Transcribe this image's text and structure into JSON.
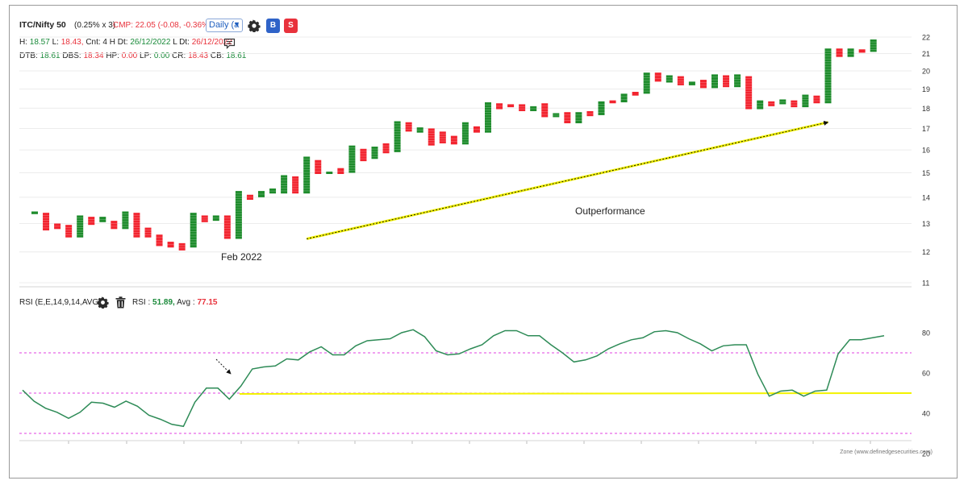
{
  "header": {
    "symbol": "ITC/Nifty 50",
    "box_info": "(0.25% x 3)",
    "cmp": "CMP: 22.05 (-0.08, -0.36%)",
    "timeframe": "Daily (a",
    "buy_label": "B",
    "sell_label": "S",
    "row2": {
      "h_label": "H:",
      "h_val": "18.57",
      "l_label": "L:",
      "l_val": "18.43,",
      "cnt": "Cnt: 4 H",
      "dt_label": "Dt:",
      "dt_val": "26/12/2022",
      "ldt_label": "L Dt:",
      "ldt_val": "26/12/2022"
    },
    "row3": {
      "dtb_label": "DTB:",
      "dtb_val": "18.61",
      "dbs_label": "DBS:",
      "dbs_val": "18.34",
      "hp_label": "HP:",
      "hp_val": "0.00",
      "lp_label": "LP:",
      "lp_val": "0.00",
      "cr_label": "CR:",
      "cr_val": "18.43",
      "cb_label": "CB:",
      "cb_val": "18.61"
    }
  },
  "rsi_header": {
    "label": "RSI (E,E,14,9,14,AVG)",
    "rsi_label": "RSI :",
    "rsi_val": "51.89,",
    "avg_label": "Avg :",
    "avg_val": "77.15"
  },
  "watermark": "Zone (www.definedgesecurities.com)",
  "colors": {
    "up": "#1e8c2c",
    "down": "#f2242f",
    "rsi_line": "#2e8b57",
    "band": "#e040e0",
    "trend": "#f2f200",
    "arrow": "#111111"
  },
  "icons": [
    "gear-icon",
    "chat-icon",
    "trash-icon"
  ],
  "chart_data": [
    {
      "type": "renko",
      "title": "ITC/Nifty 50",
      "ylim": [
        11,
        22
      ],
      "yticks": [
        11,
        12,
        13,
        14,
        15,
        16,
        17,
        18,
        19,
        20,
        21,
        22
      ],
      "annotations": [
        "Feb 2022",
        "Outperformance"
      ],
      "trendline": {
        "from": [
          24,
          12.45
        ],
        "to": [
          70,
          17.3
        ]
      },
      "columns": [
        {
          "d": 1,
          "o": 13.35,
          "c": 13.45
        },
        {
          "d": -1,
          "o": 13.4,
          "c": 12.75
        },
        {
          "d": -1,
          "o": 13.0,
          "c": 12.8
        },
        {
          "d": -1,
          "o": 12.95,
          "c": 12.5
        },
        {
          "d": 1,
          "o": 12.5,
          "c": 13.3
        },
        {
          "d": -1,
          "o": 13.25,
          "c": 12.95
        },
        {
          "d": 1,
          "o": 13.05,
          "c": 13.25
        },
        {
          "d": -1,
          "o": 13.1,
          "c": 12.8
        },
        {
          "d": 1,
          "o": 12.8,
          "c": 13.45
        },
        {
          "d": -1,
          "o": 13.4,
          "c": 12.5
        },
        {
          "d": -1,
          "o": 12.85,
          "c": 12.5
        },
        {
          "d": -1,
          "o": 12.6,
          "c": 12.2
        },
        {
          "d": -1,
          "o": 12.35,
          "c": 12.15
        },
        {
          "d": -1,
          "o": 12.3,
          "c": 12.05
        },
        {
          "d": 1,
          "o": 12.15,
          "c": 13.4
        },
        {
          "d": -1,
          "o": 13.3,
          "c": 13.05
        },
        {
          "d": 1,
          "o": 13.1,
          "c": 13.3
        },
        {
          "d": -1,
          "o": 13.3,
          "c": 12.45
        },
        {
          "d": 1,
          "o": 12.45,
          "c": 14.25
        },
        {
          "d": -1,
          "o": 14.1,
          "c": 13.9
        },
        {
          "d": 1,
          "o": 14.0,
          "c": 14.25
        },
        {
          "d": 1,
          "o": 14.15,
          "c": 14.35
        },
        {
          "d": 1,
          "o": 14.15,
          "c": 14.9
        },
        {
          "d": -1,
          "o": 14.85,
          "c": 14.15
        },
        {
          "d": 1,
          "o": 14.15,
          "c": 15.7
        },
        {
          "d": -1,
          "o": 15.55,
          "c": 14.95
        },
        {
          "d": 1,
          "o": 14.95,
          "c": 15.05
        },
        {
          "d": -1,
          "o": 15.2,
          "c": 14.95
        },
        {
          "d": 1,
          "o": 15.0,
          "c": 16.2
        },
        {
          "d": -1,
          "o": 16.05,
          "c": 15.5
        },
        {
          "d": 1,
          "o": 15.6,
          "c": 16.15
        },
        {
          "d": -1,
          "o": 16.3,
          "c": 15.85
        },
        {
          "d": 1,
          "o": 15.9,
          "c": 17.35
        },
        {
          "d": -1,
          "o": 17.3,
          "c": 16.85
        },
        {
          "d": 1,
          "o": 16.8,
          "c": 17.05
        },
        {
          "d": -1,
          "o": 17.0,
          "c": 16.2
        },
        {
          "d": -1,
          "o": 16.85,
          "c": 16.3
        },
        {
          "d": -1,
          "o": 16.65,
          "c": 16.25
        },
        {
          "d": 1,
          "o": 16.25,
          "c": 17.3
        },
        {
          "d": -1,
          "o": 17.1,
          "c": 16.8
        },
        {
          "d": 1,
          "o": 16.8,
          "c": 18.3
        },
        {
          "d": -1,
          "o": 18.25,
          "c": 17.95
        },
        {
          "d": -1,
          "o": 18.2,
          "c": 18.05
        },
        {
          "d": -1,
          "o": 18.2,
          "c": 17.85
        },
        {
          "d": 1,
          "o": 17.85,
          "c": 18.1
        },
        {
          "d": -1,
          "o": 18.25,
          "c": 17.55
        },
        {
          "d": 1,
          "o": 17.55,
          "c": 17.75
        },
        {
          "d": -1,
          "o": 17.8,
          "c": 17.25
        },
        {
          "d": 1,
          "o": 17.25,
          "c": 17.8
        },
        {
          "d": -1,
          "o": 17.85,
          "c": 17.6
        },
        {
          "d": 1,
          "o": 17.65,
          "c": 18.35
        },
        {
          "d": -1,
          "o": 18.4,
          "c": 18.25
        },
        {
          "d": 1,
          "o": 18.3,
          "c": 18.75
        },
        {
          "d": -1,
          "o": 18.85,
          "c": 18.65
        },
        {
          "d": 1,
          "o": 18.75,
          "c": 19.9
        },
        {
          "d": -1,
          "o": 19.9,
          "c": 19.4
        },
        {
          "d": 1,
          "o": 19.35,
          "c": 19.75
        },
        {
          "d": -1,
          "o": 19.7,
          "c": 19.2
        },
        {
          "d": 1,
          "o": 19.2,
          "c": 19.4
        },
        {
          "d": -1,
          "o": 19.5,
          "c": 19.05
        },
        {
          "d": 1,
          "o": 19.05,
          "c": 19.8
        },
        {
          "d": -1,
          "o": 19.75,
          "c": 19.1
        },
        {
          "d": 1,
          "o": 19.1,
          "c": 19.8
        },
        {
          "d": -1,
          "o": 19.7,
          "c": 17.95
        },
        {
          "d": 1,
          "o": 17.95,
          "c": 18.4
        },
        {
          "d": -1,
          "o": 18.35,
          "c": 18.1
        },
        {
          "d": 1,
          "o": 18.2,
          "c": 18.45
        },
        {
          "d": -1,
          "o": 18.4,
          "c": 18.05
        },
        {
          "d": 1,
          "o": 18.05,
          "c": 18.7
        },
        {
          "d": -1,
          "o": 18.65,
          "c": 18.25
        },
        {
          "d": 1,
          "o": 18.25,
          "c": 21.3
        },
        {
          "d": -1,
          "o": 21.3,
          "c": 20.8
        },
        {
          "d": 1,
          "o": 20.8,
          "c": 21.3
        },
        {
          "d": -1,
          "o": 21.25,
          "c": 21.05
        },
        {
          "d": 1,
          "o": 21.1,
          "c": 21.85
        }
      ]
    },
    {
      "type": "line",
      "title": "RSI (E,E,14,9,14,AVG)",
      "ylim": [
        20,
        90
      ],
      "yticks": [
        20,
        40,
        60,
        80
      ],
      "bands": [
        70,
        50,
        30
      ],
      "series": [
        {
          "name": "RSI",
          "values": [
            51.5,
            46,
            42.5,
            40.5,
            37.5,
            40.5,
            45.5,
            45,
            43,
            46,
            43.5,
            39,
            37,
            34.5,
            33.5,
            45.5,
            52.5,
            52.5,
            47,
            53.5,
            62,
            63,
            63.5,
            67,
            66.5,
            70.5,
            73,
            69,
            69,
            73.5,
            76,
            76.5,
            77,
            80,
            81.5,
            78,
            71,
            69,
            69.5,
            72,
            74,
            78.5,
            81,
            81,
            78.5,
            78.5,
            74,
            70,
            65.5,
            66.5,
            68.5,
            72,
            74.5,
            76.5,
            77.5,
            80.5,
            81,
            80,
            77,
            74.5,
            71,
            73.5,
            74,
            74,
            59.5,
            48.5,
            51,
            51.5,
            48.5,
            51,
            51.5,
            69.5,
            76.5,
            76.5,
            77.5,
            78.5
          ]
        },
        {
          "name": "Avg",
          "values": [
            50,
            50
          ]
        }
      ]
    }
  ]
}
